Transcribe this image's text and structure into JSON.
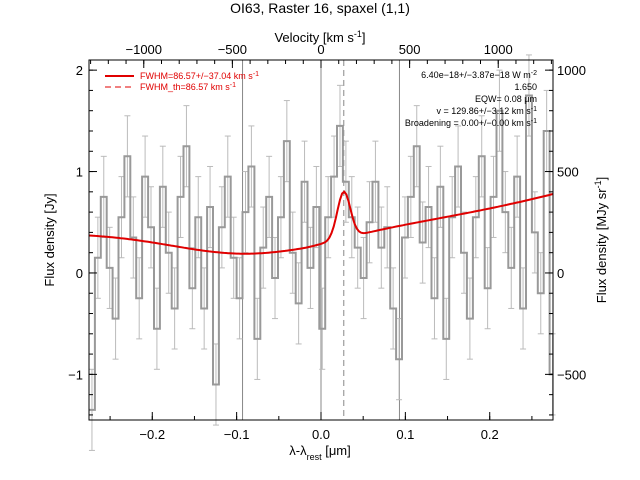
{
  "colors": {
    "data": "#999999",
    "fit": "#e00000",
    "vline": "#888888",
    "axis": "#000000"
  },
  "chart_data": {
    "type": "line",
    "title": "OI63, Raster 16, spaxel (1,1)",
    "xlabel_main": "λ-λ",
    "xlabel_sub": "rest",
    "xlabel_unit": " [μm]",
    "ylabel": "Flux density [Jy]",
    "top_axis_label": "Velocity [km s",
    "top_axis_label_sup": "-1",
    "top_axis_label_end": "]",
    "right_axis_label": "Flux density [MJy sr",
    "right_axis_label_sup": "-1",
    "right_axis_label_end": "]",
    "xlim": [
      -0.275,
      0.275
    ],
    "ylim": [
      -1.45,
      2.1
    ],
    "x_ticks": [
      -0.2,
      -0.1,
      0.0,
      0.1,
      0.2
    ],
    "x_tick_labels": [
      "−0.2",
      "−0.1",
      "0.0",
      "0.1",
      "0.2"
    ],
    "y_ticks": [
      -1,
      0,
      1,
      2
    ],
    "y_tick_labels": [
      "−1",
      "0",
      "1",
      "2"
    ],
    "top_ticks": [
      -1000,
      -500,
      0,
      500,
      1000
    ],
    "top_tick_labels": [
      "−1000",
      "−500",
      "0",
      "500",
      "1000"
    ],
    "top_axis_per_um": 4760,
    "right_ticks": [
      -500,
      0,
      500,
      1000
    ],
    "right_tick_labels": [
      "−500",
      "0",
      "500",
      "1000"
    ],
    "right_axis_per_jy": 500,
    "vlines_solid": [
      -0.093,
      0.0,
      0.093
    ],
    "vline_dashed": 0.027,
    "spectrum": {
      "x": [
        -0.275,
        -0.268,
        -0.261,
        -0.254,
        -0.247,
        -0.24,
        -0.233,
        -0.226,
        -0.219,
        -0.212,
        -0.205,
        -0.198,
        -0.191,
        -0.184,
        -0.177,
        -0.17,
        -0.163,
        -0.156,
        -0.149,
        -0.142,
        -0.135,
        -0.128,
        -0.121,
        -0.114,
        -0.107,
        -0.1,
        -0.093,
        -0.086,
        -0.079,
        -0.072,
        -0.065,
        -0.058,
        -0.051,
        -0.044,
        -0.037,
        -0.03,
        -0.023,
        -0.016,
        -0.009,
        -0.002,
        0.005,
        0.012,
        0.019,
        0.026,
        0.033,
        0.04,
        0.047,
        0.054,
        0.061,
        0.068,
        0.075,
        0.082,
        0.089,
        0.096,
        0.103,
        0.11,
        0.117,
        0.124,
        0.131,
        0.138,
        0.145,
        0.152,
        0.159,
        0.166,
        0.173,
        0.18,
        0.187,
        0.194,
        0.201,
        0.208,
        0.215,
        0.222,
        0.229,
        0.236,
        0.243,
        0.25,
        0.257,
        0.264,
        0.271
      ],
      "y": [
        -1.35,
        0.15,
        0.75,
        0.05,
        -0.45,
        0.55,
        1.15,
        0.35,
        -0.25,
        0.95,
        0.45,
        -0.55,
        0.85,
        0.2,
        -0.35,
        0.75,
        1.25,
        -0.15,
        0.55,
        -0.35,
        0.65,
        -1.1,
        0.45,
        0.95,
        0.15,
        -0.25,
        0.6,
        1.05,
        -0.65,
        0.25,
        0.75,
        -0.05,
        0.55,
        1.3,
        0.2,
        -0.3,
        0.9,
        0.05,
        0.65,
        -0.55,
        0.55,
        0.95,
        1.45,
        0.9,
        0.55,
        0.25,
        -0.05,
        0.5,
        0.9,
        0.25,
        0.45,
        -0.35,
        -0.85,
        0.35,
        0.75,
        1.25,
        0.3,
        0.65,
        -0.25,
        0.85,
        -0.65,
        0.55,
        1.05,
        0.2,
        -0.45,
        0.55,
        1.15,
        -0.15,
        0.75,
        1.6,
        0.6,
        0.05,
        0.95,
        -0.35,
        1.75,
        0.4,
        -0.2,
        1.4,
        -1.0
      ],
      "err": 0.4
    },
    "fit_curve": {
      "continuum": [
        0.39,
        0.0,
        6.2
      ],
      "continuum_center": -0.09,
      "gaussian_center": 0.027,
      "gaussian_amp": 0.46,
      "gaussian_sigma": 0.0078
    },
    "legend": {
      "placement": "top-left",
      "entries": [
        {
          "label": "FWHM=86.57+/−37.04 km s",
          "sup": "-1",
          "style": "solid"
        },
        {
          "label": "FWHM_th=86.57 km s",
          "sup": "-1",
          "style": "dashed"
        }
      ]
    },
    "annotations": [
      "6.40e−18+/−3.87e−18 W m",
      "1.650",
      "EQW",
      "= 0.08 μm",
      "v = 129.86+/−3.12 km s",
      "Broadening = 0.00+/−0.00 km s"
    ],
    "annotation_sups": [
      "-2",
      "",
      "",
      "",
      "-1",
      "-1"
    ]
  }
}
